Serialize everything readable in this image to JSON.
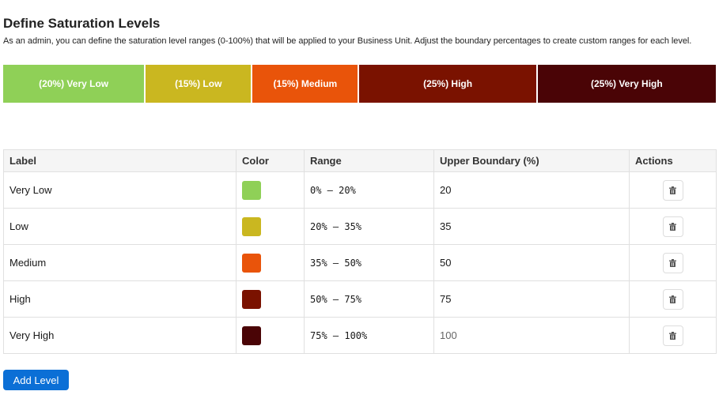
{
  "title": "Define Saturation Levels",
  "description": "As an admin, you can define the saturation level ranges (0-100%) that will be applied to your Business Unit. Adjust the boundary percentages to create custom ranges for each level.",
  "bar": [
    {
      "label": "(20%) Very Low",
      "percent": 20,
      "color": "#8fd057"
    },
    {
      "label": "(15%) Low",
      "percent": 15,
      "color": "#cab720"
    },
    {
      "label": "(15%) Medium",
      "percent": 15,
      "color": "#e9540a"
    },
    {
      "label": "(25%) High",
      "percent": 25,
      "color": "#7a1200"
    },
    {
      "label": "(25%) Very High",
      "percent": 25,
      "color": "#4a0406"
    }
  ],
  "table": {
    "headers": [
      "Label",
      "Color",
      "Range",
      "Upper Boundary (%)",
      "Actions"
    ],
    "rows": [
      {
        "label": "Very Low",
        "color": "#8fd057",
        "range": "0% – 20%",
        "upper": "20"
      },
      {
        "label": "Low",
        "color": "#cab720",
        "range": "20% – 35%",
        "upper": "35"
      },
      {
        "label": "Medium",
        "color": "#e9540a",
        "range": "35% – 50%",
        "upper": "50"
      },
      {
        "label": "High",
        "color": "#7a1200",
        "range": "50% – 75%",
        "upper": "75"
      },
      {
        "label": "Very High",
        "color": "#4a0406",
        "range": "75% – 100%",
        "upper": "100"
      }
    ]
  },
  "add_label": "Add Level"
}
